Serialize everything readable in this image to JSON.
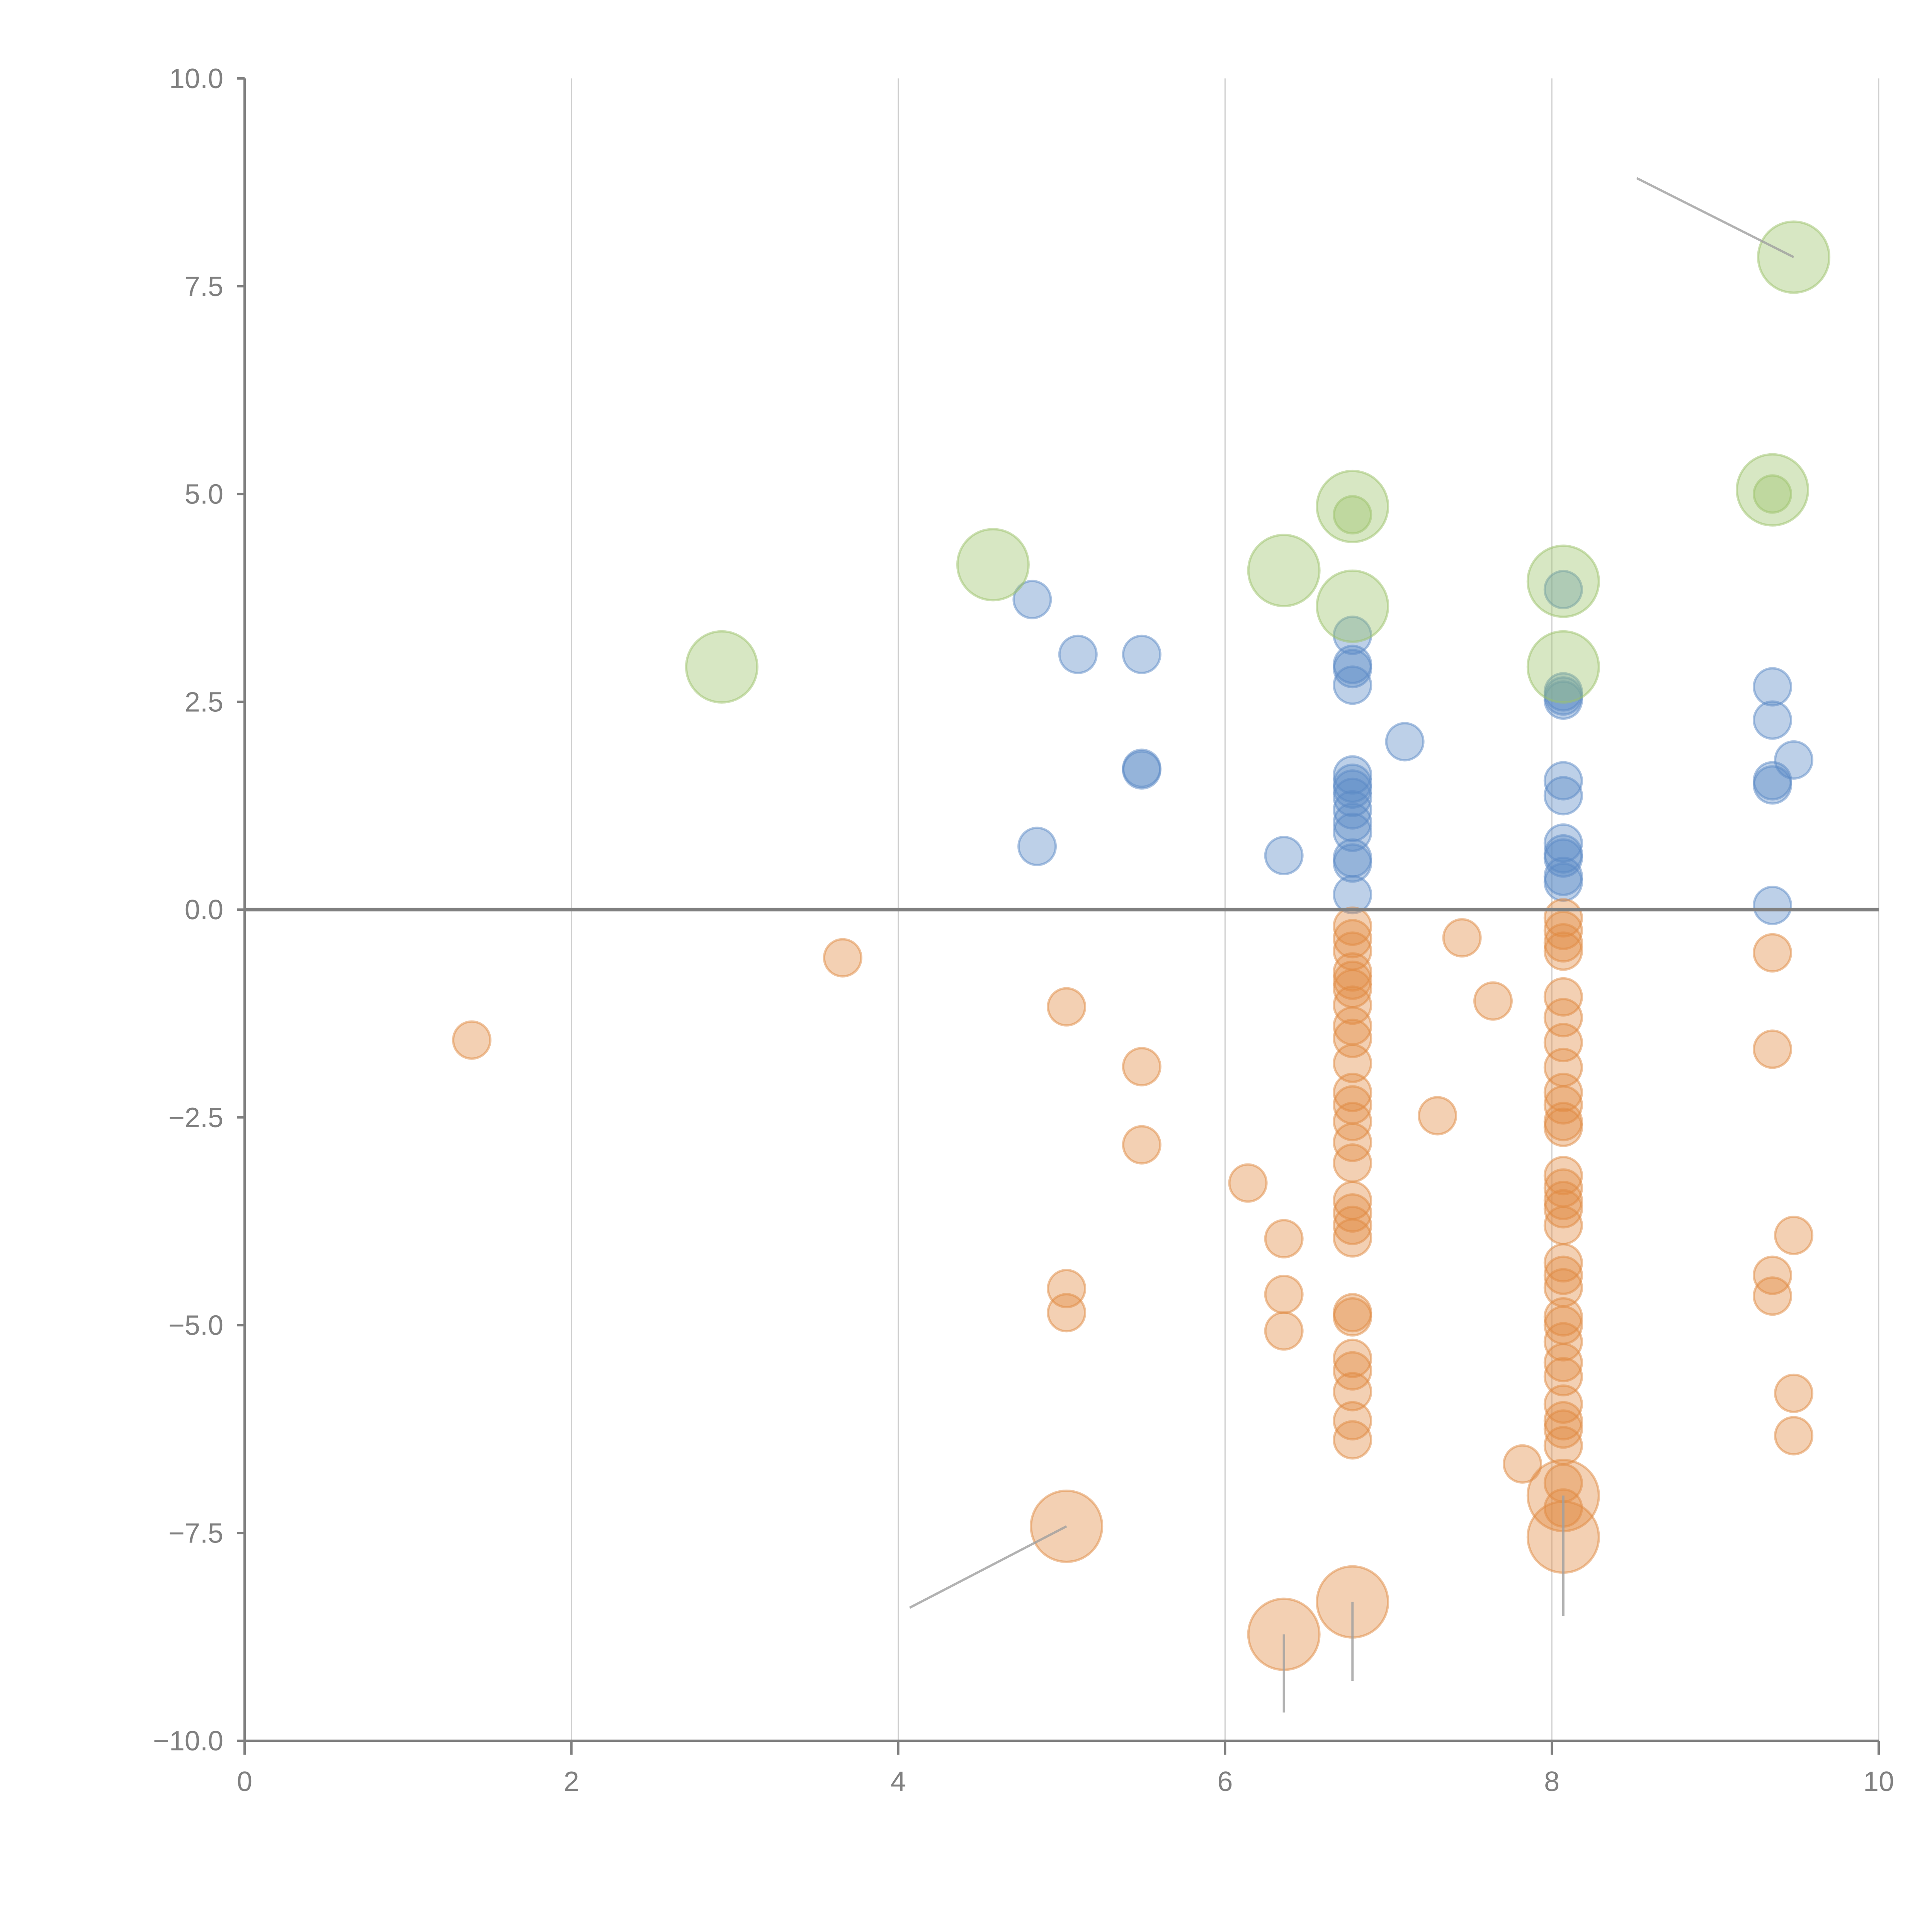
{
  "chart_data": {
    "type": "scatter",
    "title": "",
    "xlabel": "",
    "ylabel": "",
    "xlim": [
      0,
      10
    ],
    "ylim": [
      -10,
      10
    ],
    "grid": "vertical",
    "x_ticks": [
      "0",
      "2",
      "4",
      "6",
      "8",
      "10"
    ],
    "x_tick_values": [
      0,
      2,
      4,
      6,
      8,
      10
    ],
    "y_ticks": [
      "10.0",
      "7.5",
      "5.0",
      "2.5",
      "0.0",
      "−2.5",
      "−5.0",
      "−7.5",
      "−10.0"
    ],
    "y_tick_values": [
      10,
      7.5,
      5,
      2.5,
      0,
      -2.5,
      -5,
      -7.5,
      -10
    ],
    "legend": "none",
    "series": [
      {
        "name": "positive",
        "color": "#5b8ac6",
        "size": "small",
        "points": [
          [
            4.82,
            3.73
          ],
          [
            5.1,
            3.07
          ],
          [
            5.49,
            3.07
          ],
          [
            5.49,
            1.7
          ],
          [
            5.49,
            1.68
          ],
          [
            4.85,
            0.76
          ],
          [
            6.36,
            0.65
          ],
          [
            6.78,
            3.3
          ],
          [
            6.78,
            2.95
          ],
          [
            6.78,
            2.9
          ],
          [
            6.78,
            2.7
          ],
          [
            6.78,
            1.62
          ],
          [
            6.78,
            1.52
          ],
          [
            6.78,
            1.45
          ],
          [
            6.78,
            1.35
          ],
          [
            6.78,
            1.2
          ],
          [
            6.78,
            1.05
          ],
          [
            6.78,
            0.93
          ],
          [
            6.78,
            0.62
          ],
          [
            6.78,
            0.56
          ],
          [
            6.78,
            0.18
          ],
          [
            7.1,
            2.02
          ],
          [
            8.07,
            3.85
          ],
          [
            8.07,
            2.62
          ],
          [
            8.07,
            2.57
          ],
          [
            8.07,
            2.52
          ],
          [
            8.07,
            1.55
          ],
          [
            8.07,
            1.37
          ],
          [
            8.07,
            0.8
          ],
          [
            8.07,
            0.67
          ],
          [
            8.07,
            0.62
          ],
          [
            8.07,
            0.4
          ],
          [
            8.07,
            0.33
          ],
          [
            9.35,
            2.68
          ],
          [
            9.35,
            2.28
          ],
          [
            9.35,
            1.55
          ],
          [
            9.35,
            1.5
          ],
          [
            9.48,
            1.8
          ],
          [
            9.35,
            0.05
          ]
        ]
      },
      {
        "name": "negative",
        "color": "#e08a42",
        "size": "small",
        "points": [
          [
            1.39,
            -1.57
          ],
          [
            3.66,
            -0.58
          ],
          [
            5.03,
            -1.17
          ],
          [
            5.49,
            -1.89
          ],
          [
            5.49,
            -2.83
          ],
          [
            6.14,
            -3.29
          ],
          [
            6.36,
            -3.96
          ],
          [
            6.36,
            -4.63
          ],
          [
            6.36,
            -5.07
          ],
          [
            5.03,
            -4.56
          ],
          [
            5.03,
            -4.85
          ],
          [
            6.78,
            -0.2
          ],
          [
            6.78,
            -0.35
          ],
          [
            6.78,
            -0.5
          ],
          [
            6.78,
            -0.75
          ],
          [
            6.78,
            -0.85
          ],
          [
            6.78,
            -0.95
          ],
          [
            6.78,
            -1.15
          ],
          [
            6.78,
            -1.4
          ],
          [
            6.78,
            -1.55
          ],
          [
            6.78,
            -1.85
          ],
          [
            6.78,
            -2.2
          ],
          [
            6.78,
            -2.35
          ],
          [
            6.78,
            -2.55
          ],
          [
            6.78,
            -2.8
          ],
          [
            6.78,
            -3.05
          ],
          [
            6.78,
            -3.5
          ],
          [
            6.78,
            -3.65
          ],
          [
            6.78,
            -3.8
          ],
          [
            6.78,
            -3.95
          ],
          [
            6.78,
            -4.85
          ],
          [
            6.78,
            -4.9
          ],
          [
            6.78,
            -5.4
          ],
          [
            6.78,
            -5.55
          ],
          [
            6.78,
            -5.8
          ],
          [
            6.78,
            -6.15
          ],
          [
            6.78,
            -6.38
          ],
          [
            7.3,
            -2.48
          ],
          [
            7.45,
            -0.34
          ],
          [
            7.64,
            -1.1
          ],
          [
            7.82,
            -6.67
          ],
          [
            8.07,
            -0.1
          ],
          [
            8.07,
            -0.25
          ],
          [
            8.07,
            -0.4
          ],
          [
            8.07,
            -0.5
          ],
          [
            8.07,
            -1.05
          ],
          [
            8.07,
            -1.3
          ],
          [
            8.07,
            -1.6
          ],
          [
            8.07,
            -1.9
          ],
          [
            8.07,
            -2.2
          ],
          [
            8.07,
            -2.35
          ],
          [
            8.07,
            -2.55
          ],
          [
            8.07,
            -2.62
          ],
          [
            8.07,
            -3.2
          ],
          [
            8.07,
            -3.35
          ],
          [
            8.07,
            -3.5
          ],
          [
            8.07,
            -3.6
          ],
          [
            8.07,
            -3.8
          ],
          [
            8.07,
            -4.25
          ],
          [
            8.07,
            -4.4
          ],
          [
            8.07,
            -4.55
          ],
          [
            8.07,
            -4.9
          ],
          [
            8.07,
            -5.0
          ],
          [
            8.07,
            -5.2
          ],
          [
            8.07,
            -5.45
          ],
          [
            8.07,
            -5.62
          ],
          [
            8.07,
            -5.95
          ],
          [
            8.07,
            -6.15
          ],
          [
            8.07,
            -6.25
          ],
          [
            8.07,
            -6.45
          ],
          [
            8.07,
            -6.9
          ],
          [
            8.07,
            -7.2
          ],
          [
            9.35,
            -0.52
          ],
          [
            9.35,
            -1.68
          ],
          [
            9.48,
            -3.92
          ],
          [
            9.35,
            -4.4
          ],
          [
            9.35,
            -4.65
          ],
          [
            9.48,
            -5.82
          ],
          [
            9.48,
            -6.33
          ]
        ]
      },
      {
        "name": "negative-large",
        "color": "#e08a42",
        "size": "large",
        "points": [
          [
            5.03,
            -7.42
          ],
          [
            6.36,
            -8.72
          ],
          [
            6.78,
            -8.33
          ],
          [
            8.07,
            -7.05
          ],
          [
            8.07,
            -7.55
          ]
        ]
      },
      {
        "name": "positive-large",
        "color": "#9cc26a",
        "size": "large",
        "points": [
          [
            2.92,
            2.92
          ],
          [
            4.58,
            4.15
          ],
          [
            6.36,
            4.08
          ],
          [
            6.78,
            4.85
          ],
          [
            6.78,
            3.65
          ],
          [
            8.07,
            3.95
          ],
          [
            8.07,
            2.92
          ],
          [
            9.35,
            5.05
          ],
          [
            9.48,
            7.85
          ]
        ]
      },
      {
        "name": "positive-medium",
        "color": "#9cc26a",
        "size": "small",
        "points": [
          [
            6.78,
            4.75
          ],
          [
            9.35,
            5.0
          ]
        ]
      }
    ],
    "annotations": [
      {
        "from": [
          9.48,
          7.85
        ],
        "to": [
          8.52,
          8.8
        ],
        "color": "#a0a0a0"
      },
      {
        "from": [
          5.03,
          -7.42
        ],
        "to": [
          4.07,
          -8.4
        ],
        "color": "#a0a0a0"
      },
      {
        "from": [
          6.36,
          -8.72
        ],
        "to": [
          6.36,
          -9.66
        ],
        "color": "#a0a0a0"
      },
      {
        "from": [
          6.78,
          -8.33
        ],
        "to": [
          6.78,
          -9.28
        ],
        "color": "#a0a0a0"
      },
      {
        "from": [
          8.07,
          -7.05
        ],
        "to": [
          8.07,
          -8.5
        ],
        "color": "#a0a0a0"
      }
    ]
  }
}
